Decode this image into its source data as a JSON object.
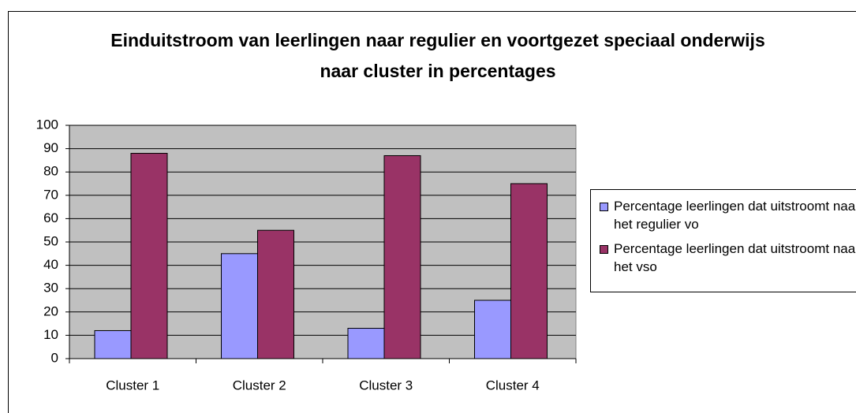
{
  "chart_data": {
    "type": "bar",
    "title": "Einduitstroom van leerlingen naar regulier en voortgezet speciaal onderwijs naar cluster in percentages",
    "categories": [
      "Cluster 1",
      "Cluster 2",
      "Cluster 3",
      "Cluster 4"
    ],
    "series": [
      {
        "name": "Percentage leerlingen dat uitstroomt naar het regulier vo",
        "color": "#9999ff",
        "values": [
          12,
          45,
          13,
          25
        ]
      },
      {
        "name": "Percentage leerlingen dat uitstroomt naar het vso",
        "color": "#993366",
        "values": [
          88,
          55,
          87,
          75
        ]
      }
    ],
    "ylim": [
      0,
      100
    ],
    "yticks": [
      0,
      10,
      20,
      30,
      40,
      50,
      60,
      70,
      80,
      90,
      100
    ],
    "grid": true,
    "legend": "right"
  }
}
